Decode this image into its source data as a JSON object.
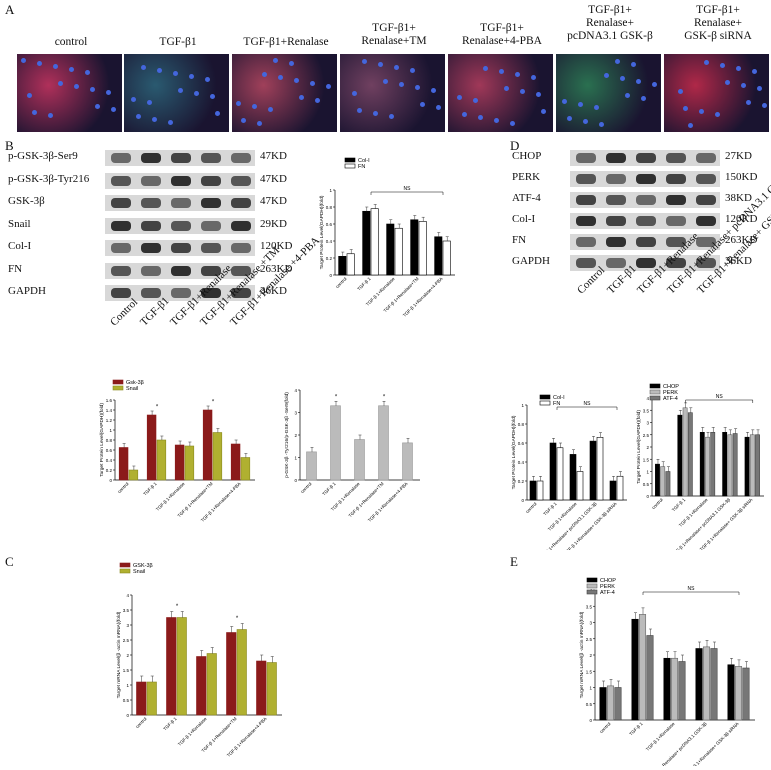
{
  "panel_letters": {
    "a": "A",
    "b": "B",
    "c": "C",
    "d": "D",
    "e": "E"
  },
  "if_panel": {
    "images": [
      {
        "label_lines": [
          "control"
        ],
        "tint": "#b0305a"
      },
      {
        "label_lines": [
          "TGF-β1"
        ],
        "tint": "#2a5a70"
      },
      {
        "label_lines": [
          "TGF-β1+Renalase"
        ],
        "tint": "#a0405a"
      },
      {
        "label_lines": [
          "TGF-β1+",
          "Renalase+TM"
        ],
        "tint": "#704060"
      },
      {
        "label_lines": [
          "TGF-β1+",
          "Renalase+4-PBA"
        ],
        "tint": "#a03858"
      },
      {
        "label_lines": [
          "TGF-β1+",
          "Renalase+",
          "pcDNA3.1 GSK-β"
        ],
        "tint": "#2a7050"
      },
      {
        "label_lines": [
          "TGF-β1+",
          "Renalase+",
          "GSK-β siRNA"
        ],
        "tint": "#b02848"
      }
    ]
  },
  "blot_b": {
    "proteins": [
      "p-GSK-3β-Ser9",
      "p-GSK-3β-Tyr216",
      "GSK-3β",
      "Snail",
      "Col-I",
      "FN",
      "GAPDH"
    ],
    "sizes": [
      "47KD",
      "47KD",
      "47KD",
      "29KD",
      "120KD",
      "263KD",
      "36KD"
    ],
    "lanes": [
      "Control",
      "TGF-β1",
      "TGF-β1+Renalase",
      "TGF-β1+Renalase +TM",
      "TGF-β1+Renalase +4-PBA"
    ]
  },
  "blot_d": {
    "proteins": [
      "CHOP",
      "PERK",
      "ATF-4",
      "Col-I",
      "FN",
      "GAPDH"
    ],
    "sizes": [
      "27KD",
      "150KD",
      "38KD",
      "120KD",
      "263KD",
      "36KD"
    ],
    "lanes": [
      "Control",
      "TGF-β1",
      "TGF-β1+Renalase",
      "TGF-β1+Renalase+ pcDNA3.1 GSK-β",
      "TGF-β1+Renalase+ GSK-β siRNA"
    ]
  },
  "colors": {
    "dark_red": "#8b1a1a",
    "olive": "#b0b030",
    "black": "#000000",
    "white": "#ffffff",
    "gray": "#bbbbbb",
    "mid_gray": "#777777"
  },
  "chart_data": [
    {
      "id": "b_colfn",
      "type": "bar",
      "categories": [
        "control",
        "TGF-β 1",
        "TGF-β 1+Renalase",
        "TGF-β 1+Renalase+TM",
        "TGF-β 1+Renalase+4-PBA"
      ],
      "series": [
        {
          "name": "Col-I",
          "values": [
            0.22,
            0.75,
            0.6,
            0.65,
            0.45
          ]
        },
        {
          "name": "FN",
          "values": [
            0.25,
            0.78,
            0.55,
            0.63,
            0.4
          ]
        }
      ],
      "ylabel": "Target Protein Level(GAPDH)(fold)",
      "ylim": [
        0,
        1
      ],
      "yticks": [
        "0",
        "0.2",
        "0.4",
        "0.6",
        "0.8",
        "1"
      ],
      "annotation": "NS"
    },
    {
      "id": "b_gsk",
      "type": "bar",
      "categories": [
        "control",
        "TGF-β 1",
        "TGF-β 1+Renalase",
        "TGF-β 1+Renalase+TM",
        "TGF-β 1+Renalase+4-PBA"
      ],
      "series": [
        {
          "name": "Gsk-3β",
          "values": [
            0.65,
            1.3,
            0.7,
            1.4,
            0.72
          ]
        },
        {
          "name": "Snail",
          "values": [
            0.2,
            0.8,
            0.68,
            0.95,
            0.45
          ]
        }
      ],
      "ylabel": "Target Protein Level(GAPDH)(fold)",
      "ylim": [
        0,
        1.6
      ],
      "yticks": [
        "0",
        "0.2",
        "0.4",
        "0.6",
        "0.8",
        "1",
        "1.2",
        "1.4",
        "1.6"
      ],
      "stars": [
        "",
        "*",
        "",
        "*",
        ""
      ]
    },
    {
      "id": "b_ratio",
      "type": "bar",
      "categories": [
        "control",
        "TGF-β 1",
        "TGF-β 1+Renalase",
        "TGF-β 1+Renalase+TM",
        "TGF-β 1+Renalase+4-PBA"
      ],
      "series": [
        {
          "name": "",
          "values": [
            1.25,
            3.3,
            1.8,
            3.3,
            1.65
          ]
        }
      ],
      "ylabel": "p-GSK-3β -Tyr216/p-GSK-3β -Ser9(fold)",
      "ylim": [
        0,
        4
      ],
      "yticks": [
        "0",
        "1",
        "2",
        "3",
        "4"
      ],
      "stars": [
        "",
        "*",
        "",
        "*",
        ""
      ]
    },
    {
      "id": "d_colfn",
      "type": "bar",
      "categories": [
        "control",
        "TGF-β 1",
        "TGF-β 1+Renalase",
        "TGF-β 1+Renalase+ pcDNA3.1 GSK-3β",
        "TGF-β 1+Renalase+ GSK-3β siRNA"
      ],
      "series": [
        {
          "name": "Col-I",
          "values": [
            0.2,
            0.6,
            0.48,
            0.62,
            0.2
          ]
        },
        {
          "name": "FN",
          "values": [
            0.2,
            0.55,
            0.3,
            0.66,
            0.25
          ]
        }
      ],
      "ylabel": "Target Protein Level(GAPDH)(fold)",
      "ylim": [
        0,
        1
      ],
      "yticks": [
        "0",
        "0.2",
        "0.4",
        "0.6",
        "0.8",
        "1"
      ],
      "annotation": "NS"
    },
    {
      "id": "d_er",
      "type": "bar",
      "categories": [
        "control",
        "TGF-β 1",
        "TGF-β 1+Renalase",
        "TGF-β 1+Renalase+ pcDNA3.1 GSK-3β",
        "TGF-β 1+Renalase+ GSK-3β siRNA"
      ],
      "series": [
        {
          "name": "CHOP",
          "values": [
            1.3,
            3.3,
            2.6,
            2.6,
            2.4
          ]
        },
        {
          "name": "PERK",
          "values": [
            1.2,
            3.6,
            2.4,
            2.5,
            2.5
          ]
        },
        {
          "name": "ATF-4",
          "values": [
            1.0,
            3.4,
            2.6,
            2.55,
            2.5
          ]
        }
      ],
      "ylabel": "Target Protein Level(GAPDH)(fold)",
      "ylim": [
        0,
        4
      ],
      "yticks": [
        "0",
        "0.5",
        "1",
        "1.5",
        "2",
        "2.5",
        "3",
        "3.5",
        "4"
      ],
      "annotation": "NS"
    },
    {
      "id": "c_mrna",
      "type": "bar",
      "categories": [
        "control",
        "TGF-β 1",
        "TGF-β 1+Renalase",
        "TGF-β 1+Renalase+TM",
        "TGF-β 1+Renalase+4-PBA"
      ],
      "series": [
        {
          "name": "GSK-3β",
          "values": [
            1.1,
            3.25,
            1.95,
            2.75,
            1.8
          ]
        },
        {
          "name": "Snail",
          "values": [
            1.1,
            3.25,
            2.05,
            2.85,
            1.75
          ]
        }
      ],
      "ylabel": "Target mRNA Level(β -actin mRNA)(fold)",
      "ylim": [
        0,
        4
      ],
      "yticks": [
        "0",
        "0.5",
        "1",
        "1.5",
        "2",
        "2.5",
        "3",
        "3.5",
        "4"
      ],
      "stars": [
        "",
        "*",
        "",
        "*",
        ""
      ]
    },
    {
      "id": "e_mrna",
      "type": "bar",
      "categories": [
        "control",
        "TGF-β 1",
        "TGF-β 1+Renalase",
        "TGF-β 1+Renalase+ pcDNA3.1 GSK-3β",
        "TGF-β 1+Renalase+ GSK-3β siRNA"
      ],
      "series": [
        {
          "name": "CHOP",
          "values": [
            1.0,
            3.1,
            1.9,
            2.2,
            1.7
          ]
        },
        {
          "name": "PERK",
          "values": [
            1.05,
            3.25,
            1.9,
            2.25,
            1.65
          ]
        },
        {
          "name": "ATF-4",
          "values": [
            1.0,
            2.6,
            1.8,
            2.2,
            1.6
          ]
        }
      ],
      "ylabel": "Target mRNA Level(β -actin mRNA)(fold)",
      "ylim": [
        0,
        4
      ],
      "yticks": [
        "0",
        "0.5",
        "1",
        "1.5",
        "2",
        "2.5",
        "3",
        "3.5",
        "4"
      ],
      "annotation": "NS"
    }
  ]
}
